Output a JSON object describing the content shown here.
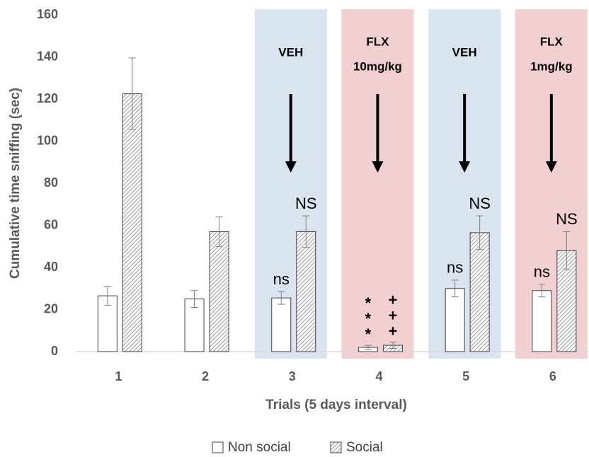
{
  "chart_data": {
    "type": "bar",
    "categories": [
      "1",
      "2",
      "3",
      "4",
      "5",
      "6"
    ],
    "series": [
      {
        "name": "Non social",
        "color": "#ffffff",
        "hatch": false,
        "values": [
          26.5,
          25,
          25.5,
          2,
          30,
          29
        ],
        "errors": [
          4.5,
          4,
          3,
          1,
          4,
          3
        ],
        "annotations": [
          null,
          null,
          "ns",
          "***",
          "ns",
          "ns"
        ]
      },
      {
        "name": "Social",
        "color": "#ffffff",
        "hatch": true,
        "values": [
          122.5,
          57,
          57,
          3,
          56.5,
          48
        ],
        "errors": [
          17,
          7,
          7.5,
          1.5,
          8,
          9
        ],
        "annotations": [
          null,
          null,
          "NS",
          "+++",
          "NS",
          "NS"
        ]
      }
    ],
    "treatments": [
      null,
      null,
      {
        "lines": [
          "VEH"
        ],
        "color": "#dae3f0"
      },
      {
        "lines": [
          "FLX",
          "10mg/kg"
        ],
        "color": "#f2d0d2"
      },
      {
        "lines": [
          "VEH"
        ],
        "color": "#dae3f0"
      },
      {
        "lines": [
          "FLX",
          "1mg/kg"
        ],
        "color": "#f2d0d2"
      }
    ],
    "xlabel": "Trials (5 days interval)",
    "ylabel": "Cumulative time sniffing (sec)",
    "ylim": [
      0,
      160
    ],
    "yticks": [
      0,
      20,
      40,
      60,
      80,
      100,
      120,
      140,
      160
    ],
    "legend": "bottom"
  }
}
